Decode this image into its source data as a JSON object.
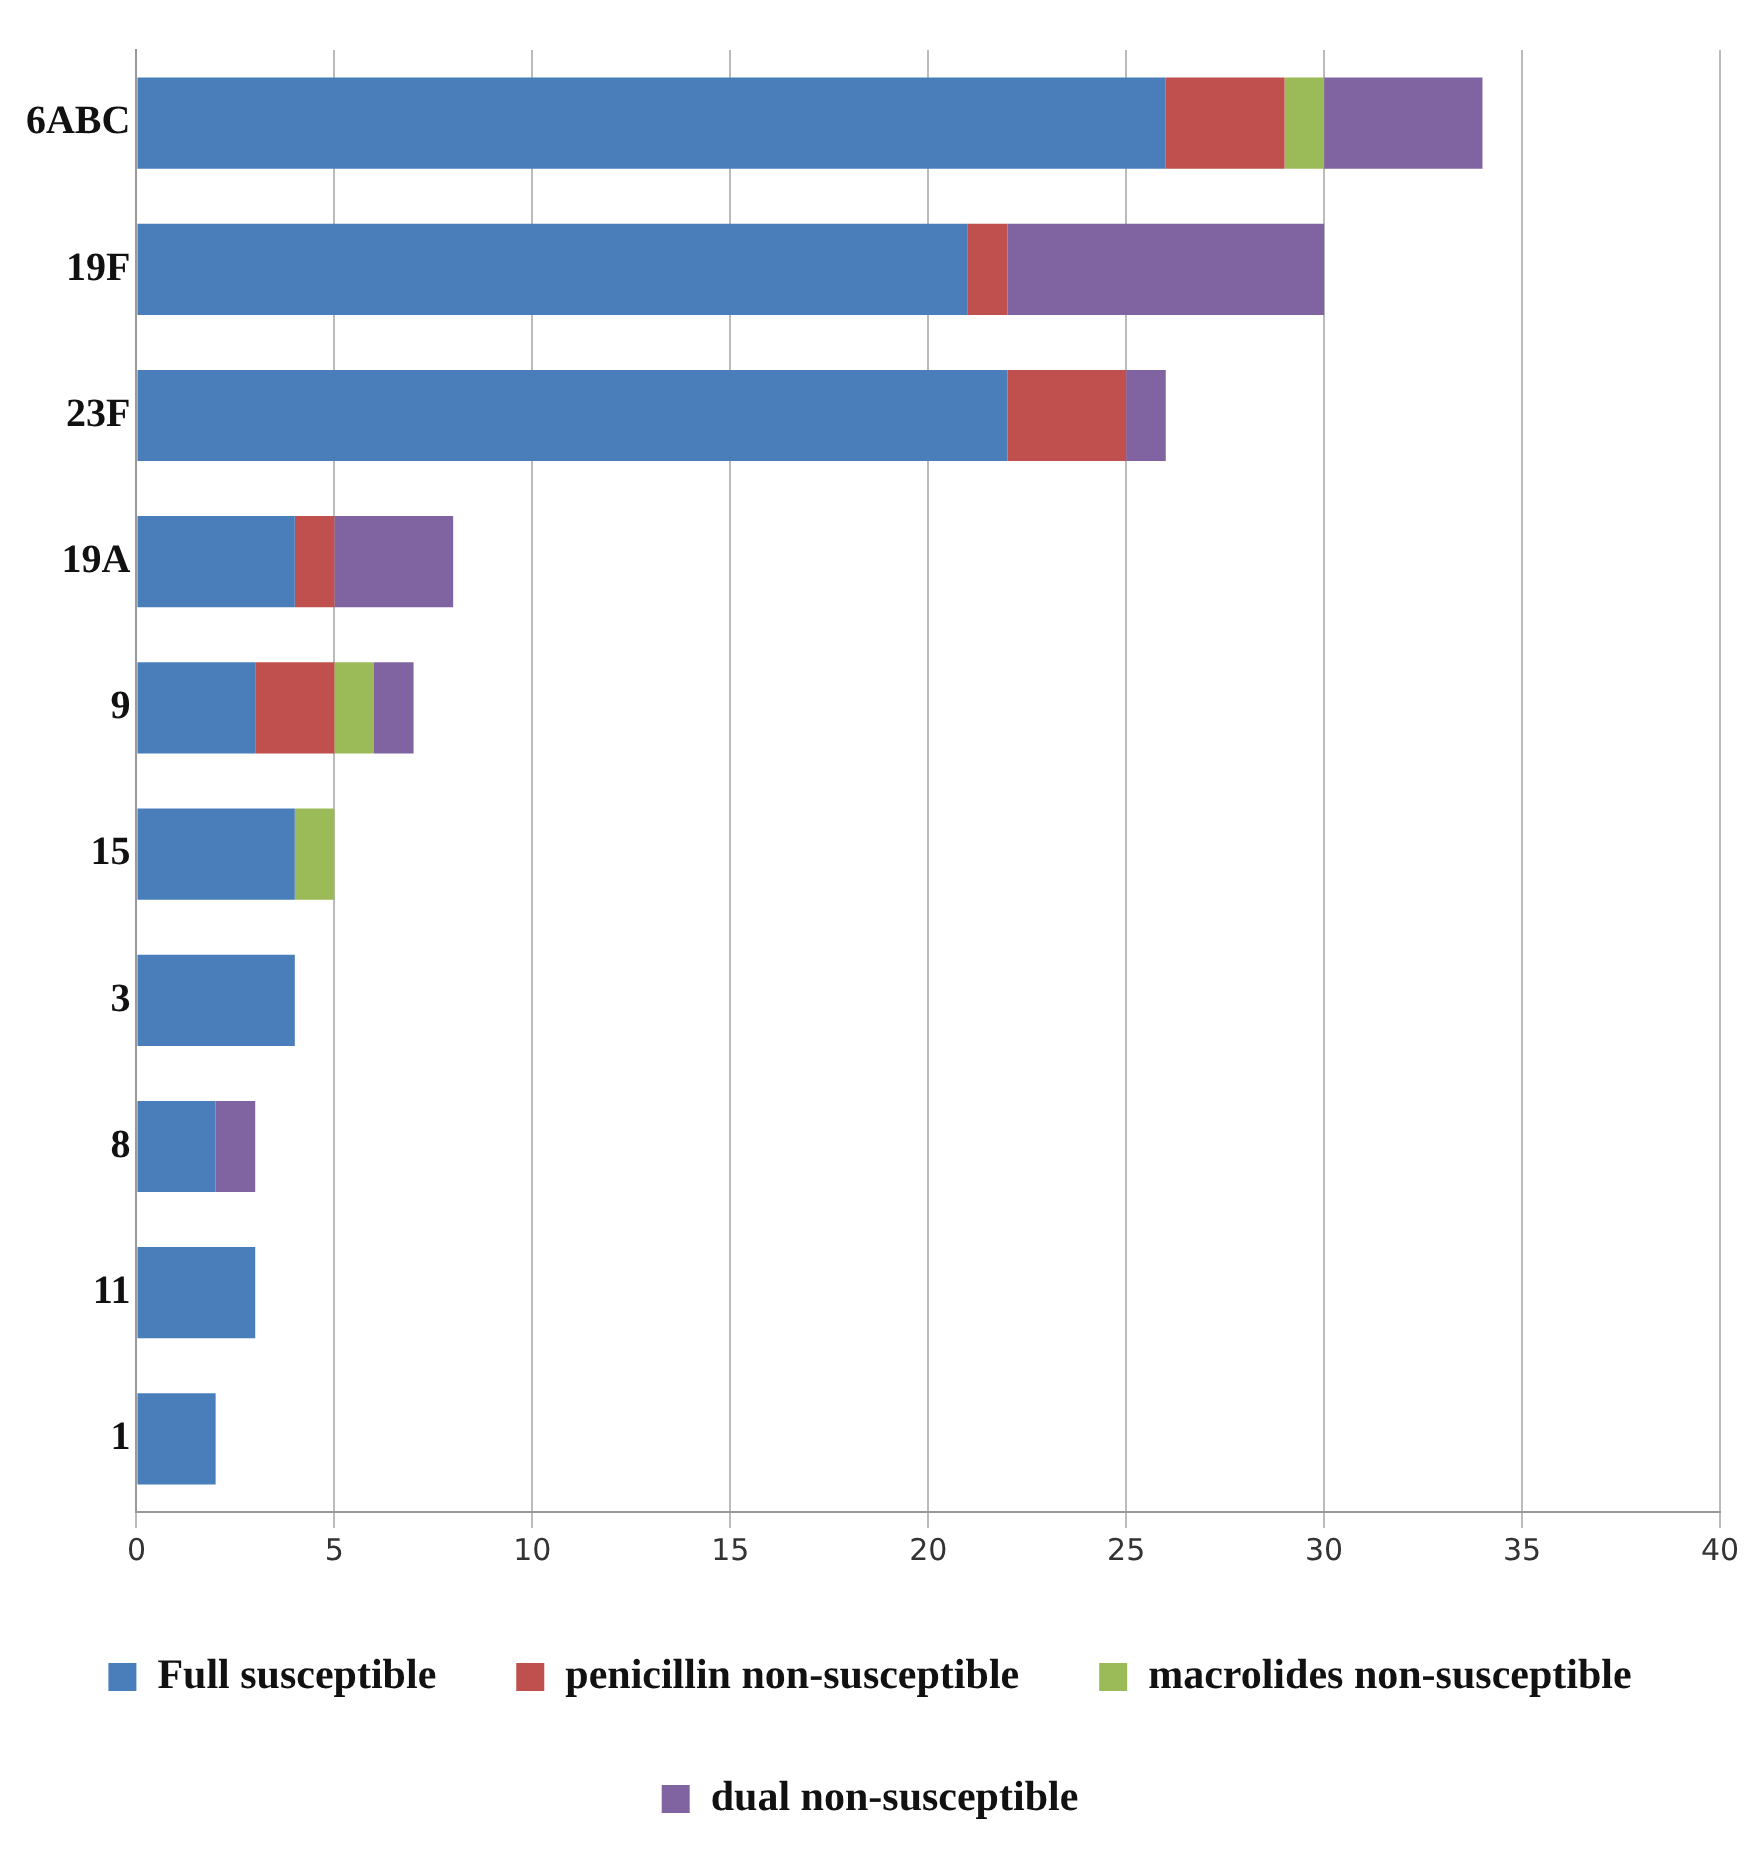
{
  "chart_data": {
    "type": "bar",
    "orientation": "horizontal",
    "stacked": true,
    "categories": [
      "6ABC",
      "19F",
      "23F",
      "19A",
      "9",
      "15",
      "3",
      "8",
      "11",
      "1"
    ],
    "series": [
      {
        "name": "Full susceptible",
        "color": "#4a7ebb",
        "values": [
          26,
          21,
          22,
          4,
          3,
          4,
          4,
          2,
          3,
          2
        ]
      },
      {
        "name": "penicillin non-susceptible",
        "color": "#c0504d",
        "values": [
          3,
          1,
          3,
          1,
          2,
          0,
          0,
          0,
          0,
          0
        ]
      },
      {
        "name": "macrolides non-susceptible",
        "color": "#9bbb59",
        "values": [
          1,
          0,
          0,
          0,
          1,
          1,
          0,
          0,
          0,
          0
        ]
      },
      {
        "name": "dual non-susceptible",
        "color": "#8064a2",
        "values": [
          4,
          8,
          1,
          3,
          1,
          0,
          0,
          1,
          0,
          0
        ]
      }
    ],
    "xlim": [
      0,
      40
    ],
    "xticks": [
      0,
      5,
      10,
      15,
      20,
      25,
      30,
      35,
      40
    ],
    "grid": "x",
    "legend": "bottom"
  }
}
